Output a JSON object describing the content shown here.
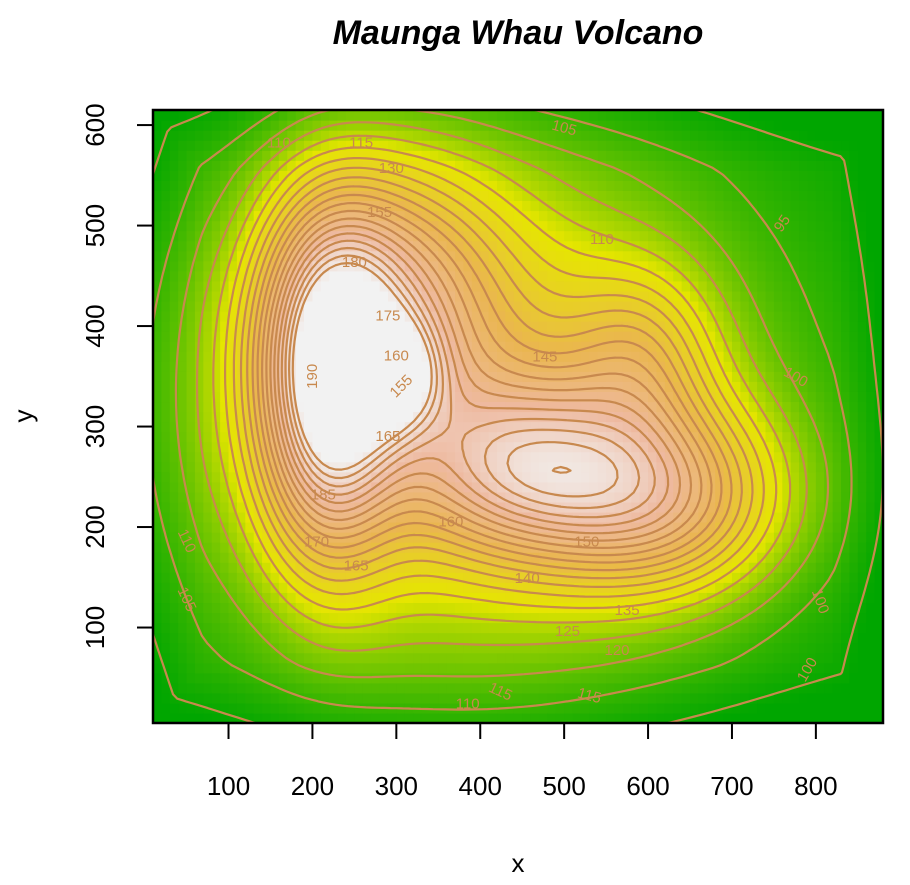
{
  "chart_data": {
    "type": "heatmap",
    "title": "Maunga Whau Volcano",
    "xlabel": "x",
    "ylabel": "y",
    "xlim": [
      10,
      880
    ],
    "ylim": [
      5,
      615
    ],
    "x_ticks": [
      "100",
      "200",
      "300",
      "400",
      "500",
      "600",
      "700",
      "800"
    ],
    "y_ticks": [
      "100",
      "200",
      "300",
      "400",
      "500",
      "600"
    ],
    "colors": [
      "#00a600",
      "#e6e600",
      "#eab64f",
      "#eeb99f",
      "#f2f2f2"
    ],
    "zlim": [
      94,
      195
    ],
    "peaks": [
      {
        "x": 220,
        "y": 340,
        "sx": 55,
        "sy": 110,
        "h": 78
      },
      {
        "x": 290,
        "y": 430,
        "sx": 90,
        "sy": 90,
        "h": 42
      },
      {
        "x": 300,
        "y": 350,
        "sx": 38,
        "sy": 38,
        "h": 35
      },
      {
        "x": 450,
        "y": 260,
        "sx": 95,
        "sy": 60,
        "h": 44
      },
      {
        "x": 610,
        "y": 230,
        "sx": 100,
        "sy": 65,
        "h": 48
      },
      {
        "x": 590,
        "y": 370,
        "sx": 60,
        "sy": 60,
        "h": 22
      },
      {
        "x": 380,
        "y": 320,
        "sx": 220,
        "sy": 170,
        "h": 40
      }
    ],
    "base": 94,
    "contour_levels": [
      95,
      100,
      105,
      110,
      115,
      120,
      125,
      130,
      135,
      140,
      145,
      150,
      155,
      160,
      165,
      170,
      175,
      180,
      185,
      190
    ],
    "contour_labels": [
      {
        "text": "110",
        "x": 160,
        "y": 582
      },
      {
        "text": "115",
        "x": 258,
        "y": 582
      },
      {
        "text": "130",
        "x": 294,
        "y": 557
      },
      {
        "text": "105",
        "x": 500,
        "y": 597,
        "angle": 15
      },
      {
        "text": "95",
        "x": 760,
        "y": 502,
        "angle": -55
      },
      {
        "text": "155",
        "x": 280,
        "y": 513
      },
      {
        "text": "110",
        "x": 545,
        "y": 486
      },
      {
        "text": "180",
        "x": 250,
        "y": 463
      },
      {
        "text": "175",
        "x": 290,
        "y": 410
      },
      {
        "text": "160",
        "x": 300,
        "y": 370
      },
      {
        "text": "190",
        "x": 200,
        "y": 350,
        "angle": -90
      },
      {
        "text": "155",
        "x": 306,
        "y": 340,
        "angle": -45
      },
      {
        "text": "145",
        "x": 477,
        "y": 369
      },
      {
        "text": "100",
        "x": 776,
        "y": 349,
        "angle": 30
      },
      {
        "text": "165",
        "x": 290,
        "y": 290
      },
      {
        "text": "185",
        "x": 213,
        "y": 232
      },
      {
        "text": "160",
        "x": 365,
        "y": 205
      },
      {
        "text": "110",
        "x": 50,
        "y": 186,
        "angle": 65
      },
      {
        "text": "170",
        "x": 205,
        "y": 185
      },
      {
        "text": "150",
        "x": 527,
        "y": 185
      },
      {
        "text": "165",
        "x": 252,
        "y": 161
      },
      {
        "text": "140",
        "x": 456,
        "y": 149
      },
      {
        "text": "105",
        "x": 50,
        "y": 128,
        "angle": 65
      },
      {
        "text": "135",
        "x": 575,
        "y": 117
      },
      {
        "text": "100",
        "x": 805,
        "y": 126,
        "angle": 70
      },
      {
        "text": "125",
        "x": 504,
        "y": 96
      },
      {
        "text": "120",
        "x": 563,
        "y": 77
      },
      {
        "text": "100",
        "x": 790,
        "y": 58,
        "angle": -60
      },
      {
        "text": "115",
        "x": 424,
        "y": 36,
        "angle": 25
      },
      {
        "text": "115",
        "x": 530,
        "y": 32,
        "angle": 15
      },
      {
        "text": "110",
        "x": 385,
        "y": 24
      }
    ]
  }
}
